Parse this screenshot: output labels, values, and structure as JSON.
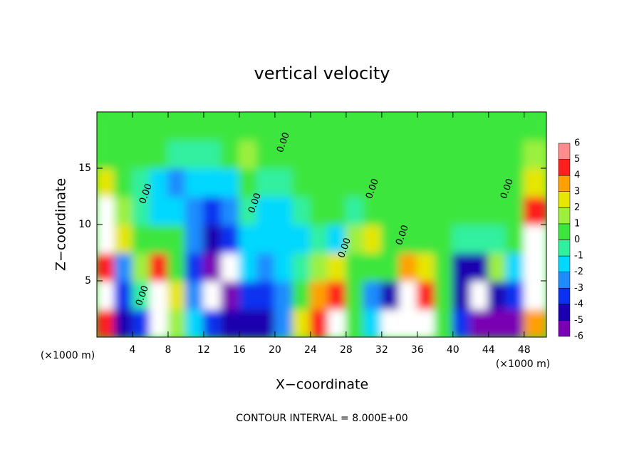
{
  "chart_data": {
    "type": "contourf",
    "title": "vertical velocity",
    "xlabel": "X−coordinate",
    "ylabel": "Z−coordinate",
    "x_unit": "(×1000 m)",
    "y_unit": "(×1000 m)",
    "footer": "CONTOUR INTERVAL = 8.000E+00",
    "contour_label": "0.00",
    "xlim": [
      0,
      50.5
    ],
    "ylim": [
      0,
      20
    ],
    "xticks": [
      4,
      8,
      12,
      16,
      20,
      24,
      28,
      32,
      36,
      40,
      44,
      48
    ],
    "yticks": [
      5,
      10,
      15
    ],
    "x": [
      1,
      3,
      5,
      7,
      9,
      11,
      13,
      15,
      17,
      19,
      21,
      23,
      25,
      27,
      29,
      31,
      33,
      35,
      37,
      39,
      41,
      43,
      45,
      47,
      49
    ],
    "z": [
      1.25,
      3.75,
      6.25,
      8.75,
      11.25,
      13.75,
      16.25,
      18.75
    ],
    "values": [
      [
        5,
        7,
        5,
        8,
        7,
        3,
        1,
        0.5
      ],
      [
        -4,
        -3,
        -2,
        3,
        2,
        0.5,
        0.5,
        0.5
      ],
      [
        -3,
        0,
        2,
        0.5,
        0,
        0,
        0.5,
        0.5
      ],
      [
        7,
        8,
        5,
        0.5,
        -1,
        -1,
        0.5,
        0.5
      ],
      [
        2,
        3,
        1,
        0.5,
        -1,
        -2,
        0,
        0.5
      ],
      [
        -1,
        -2,
        -3,
        -2,
        -2,
        -1,
        0,
        0.5
      ],
      [
        -3,
        8,
        -6,
        -4,
        -3,
        -1.5,
        0,
        0.5
      ],
      [
        -4,
        -5,
        8,
        -3,
        -2,
        -1,
        0.5,
        0.5
      ],
      [
        -4,
        -3,
        -1,
        -1,
        0,
        1,
        1.5,
        0.5
      ],
      [
        -4,
        -3,
        -2,
        -1,
        -1,
        0,
        0.5,
        0.5
      ],
      [
        -2,
        -2,
        -1,
        -1,
        -1,
        0,
        0.5,
        0.5
      ],
      [
        3,
        1,
        -0.5,
        -1,
        0,
        0.5,
        0.5,
        0.5
      ],
      [
        5,
        4,
        2,
        0,
        0.5,
        0.5,
        0.5,
        0.5
      ],
      [
        7,
        5,
        3,
        -1,
        0.5,
        0.5,
        0.5,
        0.5
      ],
      [
        1,
        0.5,
        1,
        2,
        0,
        0.5,
        0.5,
        0.5
      ],
      [
        -1,
        -2,
        0.5,
        3,
        0.5,
        0.5,
        0.5,
        0.5
      ],
      [
        -7,
        -4,
        1,
        0.5,
        0.5,
        0.5,
        0.5,
        0.5
      ],
      [
        8,
        8,
        4,
        0.5,
        0.5,
        0.5,
        0.5,
        0.5
      ],
      [
        7,
        5,
        3,
        0.5,
        0.5,
        0.5,
        0.5,
        0.5
      ],
      [
        1,
        0.5,
        0.5,
        0.5,
        0.5,
        0.5,
        0.5,
        0.5
      ],
      [
        -3,
        -4,
        -4,
        0,
        0.5,
        0.5,
        0.5,
        0.5
      ],
      [
        -5,
        8,
        -4,
        0,
        0.5,
        1,
        0.5,
        0.5
      ],
      [
        -5,
        -4,
        2,
        0,
        0.5,
        0.5,
        0.5,
        0.5
      ],
      [
        -6,
        -3,
        -1,
        1,
        1,
        0.5,
        0.5,
        0.5
      ],
      [
        4,
        8,
        8,
        7,
        5,
        3,
        1.5,
        0.5
      ]
    ],
    "levels": [
      -6,
      -5,
      -4,
      -3,
      -2,
      -1,
      0,
      1,
      2,
      3,
      4,
      5,
      6
    ],
    "colors": [
      "#7a00b4",
      "#1a00b0",
      "#0a30f0",
      "#1e8cff",
      "#00d8ff",
      "#30f0a0",
      "#3ce63c",
      "#9cf03c",
      "#e6e600",
      "#ffa000",
      "#ff1e1e",
      "#ff8c8c"
    ],
    "extend_color": "#ffffff"
  }
}
